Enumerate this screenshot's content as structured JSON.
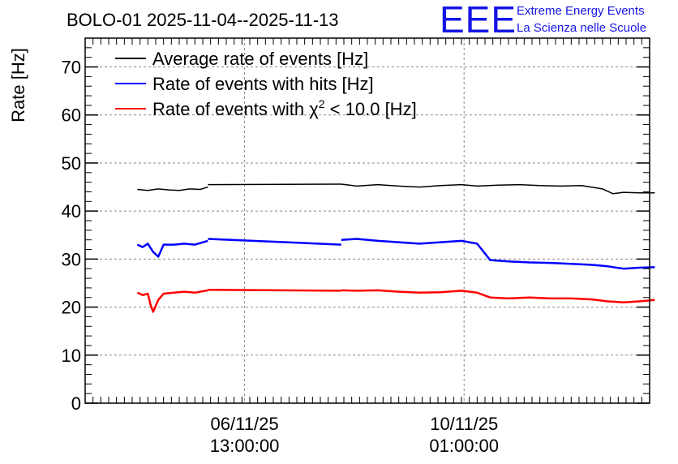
{
  "chart_data": {
    "type": "line",
    "title": "BOLO-01 2025-11-04--2025-11-13",
    "ylabel": "Rate [Hz]",
    "xlabel": "",
    "ylim": [
      0,
      76
    ],
    "yticks": [
      0,
      10,
      20,
      30,
      40,
      50,
      60,
      70
    ],
    "x_unit": "hours since 2025-11-04 00:00",
    "xlim": [
      0,
      216
    ],
    "xticks": [
      {
        "x": 61,
        "date": "06/11/25",
        "time": "13:00:00"
      },
      {
        "x": 145,
        "date": "10/11/25",
        "time": "01:00:00"
      }
    ],
    "grid": true,
    "legend_position": "top-left",
    "series": [
      {
        "name": "Average rate of events [Hz]",
        "color": "#000000",
        "segments": [
          {
            "x": [
              20,
              24,
              28,
              32,
              36,
              40,
              44,
              47
            ],
            "y": [
              44.5,
              44.3,
              44.6,
              44.4,
              44.3,
              44.6,
              44.5,
              45.0
            ]
          },
          {
            "x": [
              47,
              98
            ],
            "y": [
              45.5,
              45.6
            ]
          },
          {
            "x": [
              98,
              104,
              112,
              120,
              128,
              136,
              144,
              150,
              158,
              166,
              174,
              182,
              190,
              198,
              202,
              206,
              212,
              218
            ],
            "y": [
              45.6,
              45.2,
              45.5,
              45.2,
              45.0,
              45.3,
              45.5,
              45.2,
              45.4,
              45.5,
              45.3,
              45.2,
              45.3,
              44.6,
              43.6,
              43.9,
              43.8,
              43.8
            ]
          }
        ]
      },
      {
        "name": "Rate of events with hits [Hz]",
        "color": "#0000ff",
        "segments": [
          {
            "x": [
              20,
              22,
              24,
              26,
              28,
              30,
              34,
              38,
              42,
              47
            ],
            "y": [
              33.0,
              32.5,
              33.2,
              31.5,
              30.5,
              33.0,
              33.0,
              33.2,
              33.0,
              33.8
            ]
          },
          {
            "x": [
              47,
              98
            ],
            "y": [
              34.2,
              33.0
            ]
          },
          {
            "x": [
              98,
              104,
              112,
              120,
              128,
              136,
              144,
              150,
              155,
              162,
              170,
              178,
              186,
              194,
              200,
              206,
              212,
              218
            ],
            "y": [
              34.0,
              34.2,
              33.8,
              33.5,
              33.2,
              33.5,
              33.8,
              33.2,
              29.8,
              29.5,
              29.3,
              29.2,
              29.0,
              28.8,
              28.5,
              28.0,
              28.2,
              28.3
            ]
          }
        ]
      },
      {
        "name": "Rate of events with χ² < 10.0 [Hz]",
        "label_main": "Rate of events with χ",
        "label_sup": "2",
        "label_tail": " < 10.0 [Hz]",
        "color": "#ff0000",
        "segments": [
          {
            "x": [
              20,
              22,
              24,
              25,
              26,
              28,
              30,
              34,
              38,
              42,
              47
            ],
            "y": [
              23.0,
              22.5,
              22.8,
              20.5,
              19.0,
              21.5,
              22.8,
              23.0,
              23.2,
              23.0,
              23.5
            ]
          },
          {
            "x": [
              47,
              98
            ],
            "y": [
              23.6,
              23.4
            ]
          },
          {
            "x": [
              98,
              104,
              112,
              120,
              128,
              136,
              144,
              150,
              155,
              162,
              170,
              178,
              186,
              194,
              200,
              206,
              212,
              218
            ],
            "y": [
              23.5,
              23.4,
              23.5,
              23.2,
              23.0,
              23.1,
              23.4,
              23.0,
              22.0,
              21.8,
              22.0,
              21.8,
              21.8,
              21.6,
              21.2,
              21.0,
              21.2,
              21.5
            ]
          }
        ]
      }
    ]
  },
  "logo": {
    "letters": "EEE",
    "line1": "Extreme Energy Events",
    "line2": "La Scienza nelle Scuole"
  }
}
